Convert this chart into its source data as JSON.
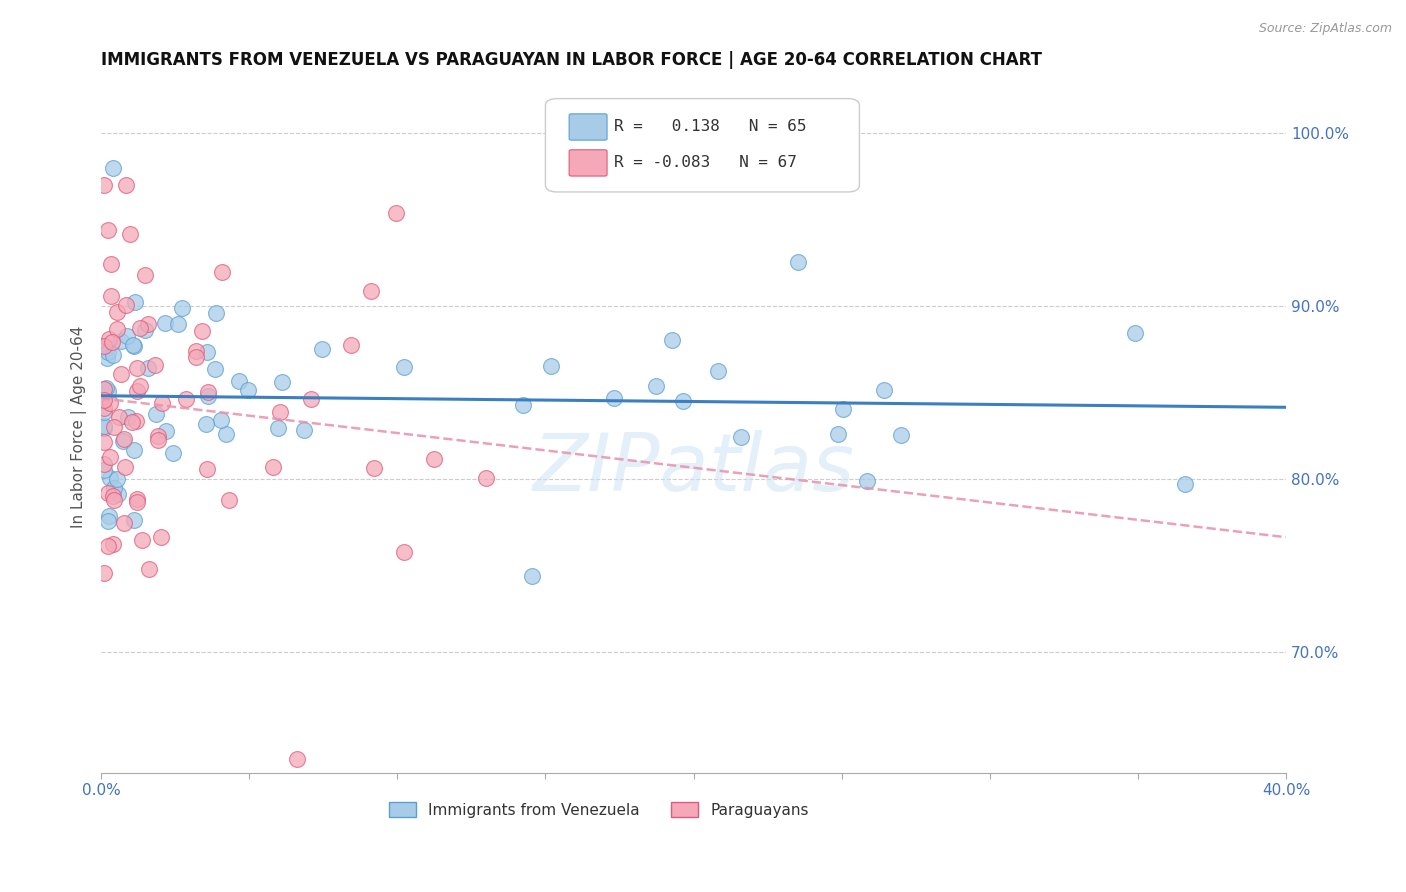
{
  "title": "IMMIGRANTS FROM VENEZUELA VS PARAGUAYAN IN LABOR FORCE | AGE 20-64 CORRELATION CHART",
  "source": "Source: ZipAtlas.com",
  "ylabel": "In Labor Force | Age 20-64",
  "xlim": [
    0.0,
    0.4
  ],
  "ylim": [
    0.63,
    1.03
  ],
  "yticks_right": [
    0.7,
    0.8,
    0.9,
    1.0
  ],
  "ytick_right_labels": [
    "70.0%",
    "80.0%",
    "90.0%",
    "100.0%"
  ],
  "r_venezuela": 0.138,
  "n_venezuela": 65,
  "r_paraguayan": -0.083,
  "n_paraguayan": 67,
  "venezuela_color": "#a8cce8",
  "venezuela_edge": "#5a9fd4",
  "paraguayan_color": "#f4a8b8",
  "paraguayan_edge": "#e05a7a",
  "venezuela_line_color": "#3a7fc1",
  "paraguayan_line_color": "#e891a8",
  "watermark": "ZIPatlas",
  "xtick_positions": [
    0.0,
    0.05,
    0.1,
    0.15,
    0.2,
    0.25,
    0.3,
    0.35,
    0.4
  ]
}
